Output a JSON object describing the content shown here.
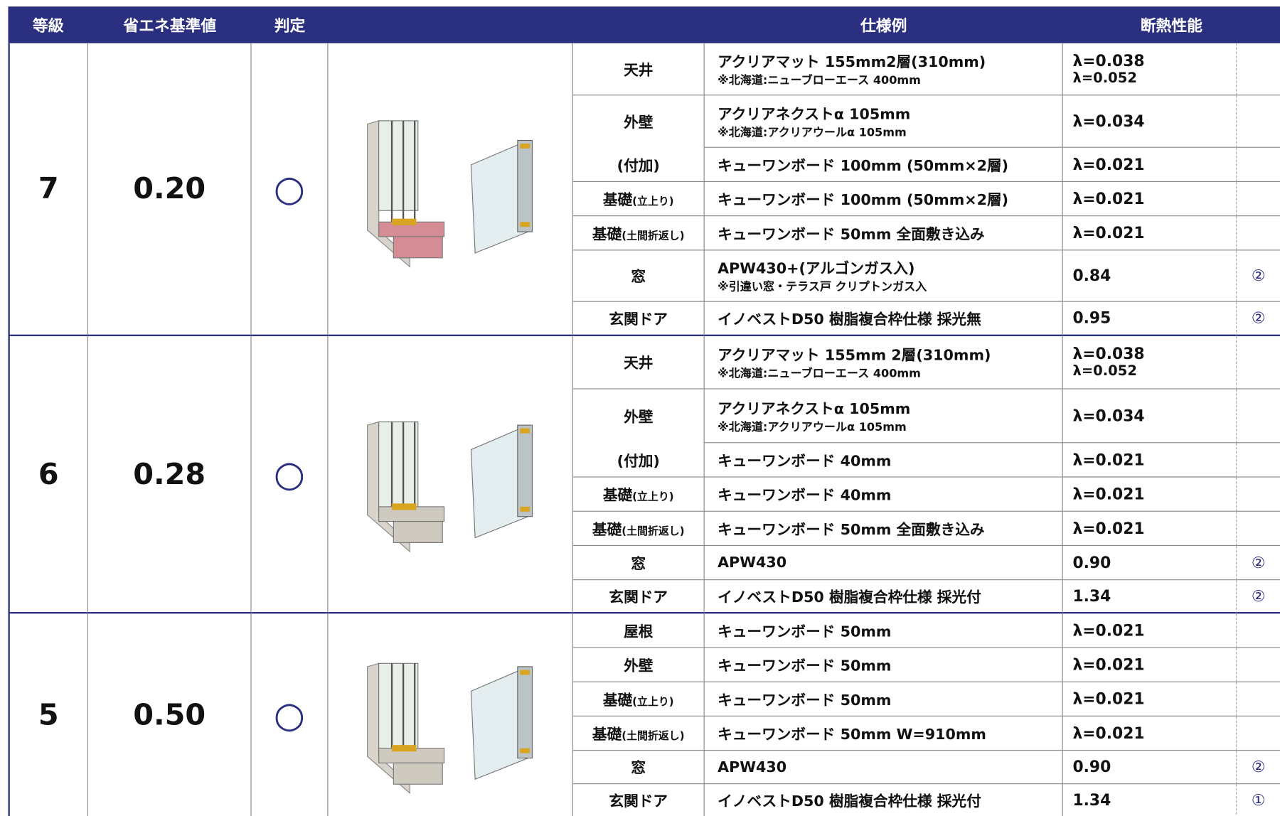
{
  "header": {
    "columns": [
      "等級",
      "省エネ基準値",
      "判定",
      "仕様例",
      "断熱性能"
    ]
  },
  "groups": [
    {
      "grade": "7",
      "value": "0.20",
      "judge": "○",
      "rows": [
        {
          "label": "天井",
          "spec": [
            "アクリアマット 155mm2層(310mm)",
            "※北海道:ニューブローエース 400mm"
          ],
          "perf": [
            "λ=0.038",
            "λ=0.052"
          ]
        },
        {
          "label": "外壁",
          "spec": [
            "アクリアネクストα 105mm",
            "※北海道:アクリアウールα 105mm"
          ],
          "perf": [
            "λ=0.034"
          ]
        },
        {
          "label": "(付加)",
          "spec": [
            "キューワンボード 100mm (50mm×2層)"
          ],
          "perf": [
            "λ=0.021"
          ]
        },
        {
          "label": "基礎",
          "label_note": "(立上り)",
          "spec": [
            "キューワンボード 100mm (50mm×2層)"
          ],
          "perf": [
            "λ=0.021"
          ]
        },
        {
          "label": "基礎",
          "label_note": "(土間折返し)",
          "spec": [
            "キューワンボード 50mm 全面敷き込み"
          ],
          "perf": [
            "λ=0.021"
          ]
        },
        {
          "label": "窓",
          "spec": [
            "APW430+(アルゴンガス入)",
            "※引違い窓・テラス戸 クリプトンガス入"
          ],
          "perf": [
            "0.84"
          ],
          "mark": "②"
        },
        {
          "label": "玄関ドア",
          "spec": [
            "イノベストD50 樹脂複合枠仕様 採光無"
          ],
          "perf": [
            "0.95"
          ],
          "mark": "②"
        }
      ]
    },
    {
      "grade": "6",
      "value": "0.28",
      "judge": "○",
      "rows": [
        {
          "label": "天井",
          "spec": [
            "アクリアマット 155mm 2層(310mm)",
            "※北海道:ニューブローエース 400mm"
          ],
          "perf": [
            "λ=0.038",
            "λ=0.052"
          ]
        },
        {
          "label": "外壁",
          "spec": [
            "アクリアネクストα 105mm",
            "※北海道:アクリアウールα 105mm"
          ],
          "perf": [
            "λ=0.034"
          ]
        },
        {
          "label": "(付加)",
          "spec": [
            "キューワンボード 40mm"
          ],
          "perf": [
            "λ=0.021"
          ]
        },
        {
          "label": "基礎",
          "label_note": "(立上り)",
          "spec": [
            "キューワンボード 40mm"
          ],
          "perf": [
            "λ=0.021"
          ]
        },
        {
          "label": "基礎",
          "label_note": "(土間折返し)",
          "spec": [
            "キューワンボード 50mm 全面敷き込み"
          ],
          "perf": [
            "λ=0.021"
          ]
        },
        {
          "label": "窓",
          "spec": [
            "APW430"
          ],
          "perf": [
            "0.90"
          ],
          "mark": "②"
        },
        {
          "label": "玄関ドア",
          "spec": [
            "イノベストD50 樹脂複合枠仕様 採光付"
          ],
          "perf": [
            "1.34"
          ],
          "mark": "②"
        }
      ]
    },
    {
      "grade": "5",
      "value": "0.50",
      "judge": "○",
      "rows": [
        {
          "label": "屋根",
          "spec": [
            "キューワンボード 50mm"
          ],
          "perf": [
            "λ=0.021"
          ]
        },
        {
          "label": "外壁",
          "spec": [
            "キューワンボード 50mm"
          ],
          "perf": [
            "λ=0.021"
          ]
        },
        {
          "label": "基礎",
          "label_note": "(立上り)",
          "spec": [
            "キューワンボード 50mm"
          ],
          "perf": [
            "λ=0.021"
          ]
        },
        {
          "label": "基礎",
          "label_note": "(土間折返し)",
          "spec": [
            "キューワンボード 50mm W=910mm"
          ],
          "perf": [
            "λ=0.021"
          ]
        },
        {
          "label": "窓",
          "spec": [
            "APW430"
          ],
          "perf": [
            "0.90"
          ],
          "mark": "②"
        },
        {
          "label": "玄関ドア",
          "spec": [
            "イノベストD50 樹脂複合枠仕様 採光付"
          ],
          "perf": [
            "1.34"
          ],
          "mark": "①"
        }
      ]
    }
  ]
}
